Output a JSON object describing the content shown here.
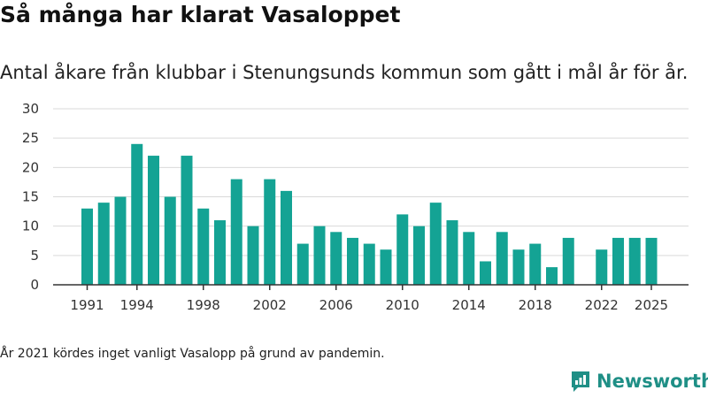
{
  "title": "Så många har klarat Vasaloppet",
  "subtitle": "Antal åkare från klubbar i Stenungsunds kommun som gått i mål år för år.",
  "note": "År 2021 kördes inget vanligt Vasalopp på grund av pandemin.",
  "brand": {
    "name": "Newsworthy",
    "icon": "newsworthy-logo-icon",
    "color": "#1f8f86"
  },
  "chart_data": {
    "type": "bar",
    "bar_color": "#14a394",
    "x": [
      1991,
      1992,
      1993,
      1994,
      1995,
      1996,
      1997,
      1998,
      1999,
      2000,
      2001,
      2002,
      2003,
      2004,
      2005,
      2006,
      2007,
      2008,
      2009,
      2010,
      2011,
      2012,
      2013,
      2014,
      2015,
      2016,
      2017,
      2018,
      2019,
      2020,
      2021,
      2022,
      2023,
      2024,
      2025
    ],
    "values": [
      13,
      14,
      15,
      24,
      22,
      15,
      22,
      13,
      11,
      18,
      10,
      18,
      16,
      7,
      10,
      9,
      8,
      7,
      6,
      12,
      10,
      14,
      11,
      9,
      4,
      9,
      6,
      7,
      3,
      8,
      null,
      6,
      8,
      8,
      8
    ],
    "xticks": [
      "1991",
      "1994",
      "1998",
      "2002",
      "2006",
      "2010",
      "2014",
      "2018",
      "2022",
      "2025"
    ],
    "yticks": [
      "0",
      "5",
      "10",
      "15",
      "20",
      "25",
      "30"
    ],
    "ylim": [
      0,
      30
    ],
    "grid": true
  }
}
